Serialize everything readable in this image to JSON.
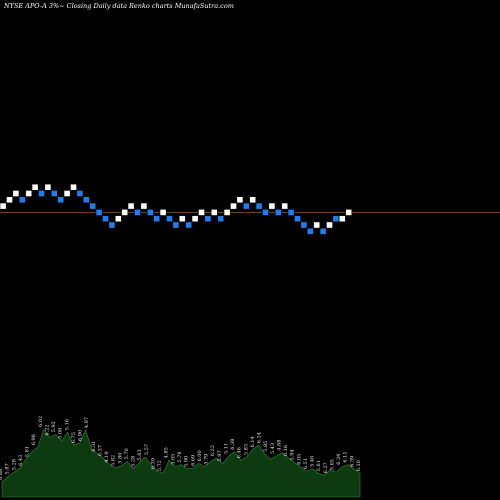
{
  "header": {
    "text": "NYSE APO-A 3%~  Closing Daily data  Renko  charts MunafaSutra.com"
  },
  "colors": {
    "background": "#000000",
    "up_brick": "#ffffff",
    "down_brick": "#1e7ef0",
    "reference_line": "#8b5a2b",
    "volume_fill": "#0d3a10",
    "volume_outline": "#2d8a30"
  },
  "chart_data": {
    "type": "renko",
    "title": "NYSE APO-A 3%~  Closing Daily data  Renko  charts MunafaSutra.com",
    "brick_size_note": "3%",
    "bricks": [
      {
        "dir": "up",
        "level": 0
      },
      {
        "dir": "up",
        "level": 1
      },
      {
        "dir": "up",
        "level": 2
      },
      {
        "dir": "down",
        "level": 1
      },
      {
        "dir": "up",
        "level": 2
      },
      {
        "dir": "up",
        "level": 3
      },
      {
        "dir": "down",
        "level": 2
      },
      {
        "dir": "up",
        "level": 3
      },
      {
        "dir": "down",
        "level": 2
      },
      {
        "dir": "down",
        "level": 1
      },
      {
        "dir": "up",
        "level": 2
      },
      {
        "dir": "up",
        "level": 3
      },
      {
        "dir": "down",
        "level": 2
      },
      {
        "dir": "down",
        "level": 1
      },
      {
        "dir": "down",
        "level": 0
      },
      {
        "dir": "down",
        "level": -1
      },
      {
        "dir": "down",
        "level": -2
      },
      {
        "dir": "down",
        "level": -3
      },
      {
        "dir": "up",
        "level": -2
      },
      {
        "dir": "up",
        "level": -1
      },
      {
        "dir": "up",
        "level": 0
      },
      {
        "dir": "down",
        "level": -1
      },
      {
        "dir": "up",
        "level": 0
      },
      {
        "dir": "down",
        "level": -1
      },
      {
        "dir": "down",
        "level": -2
      },
      {
        "dir": "up",
        "level": -1
      },
      {
        "dir": "down",
        "level": -2
      },
      {
        "dir": "down",
        "level": -3
      },
      {
        "dir": "up",
        "level": -2
      },
      {
        "dir": "down",
        "level": -3
      },
      {
        "dir": "up",
        "level": -2
      },
      {
        "dir": "up",
        "level": -1
      },
      {
        "dir": "down",
        "level": -2
      },
      {
        "dir": "up",
        "level": -1
      },
      {
        "dir": "down",
        "level": -2
      },
      {
        "dir": "up",
        "level": -1
      },
      {
        "dir": "up",
        "level": 0
      },
      {
        "dir": "up",
        "level": 1
      },
      {
        "dir": "down",
        "level": 0
      },
      {
        "dir": "up",
        "level": 1
      },
      {
        "dir": "down",
        "level": 0
      },
      {
        "dir": "down",
        "level": -1
      },
      {
        "dir": "up",
        "level": 0
      },
      {
        "dir": "down",
        "level": -1
      },
      {
        "dir": "up",
        "level": 0
      },
      {
        "dir": "down",
        "level": -1
      },
      {
        "dir": "down",
        "level": -2
      },
      {
        "dir": "down",
        "level": -3
      },
      {
        "dir": "down",
        "level": -4
      },
      {
        "dir": "up",
        "level": -3
      },
      {
        "dir": "down",
        "level": -4
      },
      {
        "dir": "up",
        "level": -3
      },
      {
        "dir": "down",
        "level": -2
      },
      {
        "dir": "up",
        "level": -2
      },
      {
        "dir": "up",
        "level": -1
      }
    ],
    "reference_level": -1,
    "volume": [
      14,
      19,
      23,
      27,
      35,
      42,
      46,
      63,
      55,
      58,
      52,
      60,
      48,
      50,
      62,
      45,
      40,
      36,
      30,
      27,
      29,
      33,
      26,
      32,
      37,
      30,
      24,
      22,
      34,
      28,
      30,
      26,
      27,
      31,
      28,
      33,
      36,
      31,
      38,
      42,
      34,
      37,
      44,
      48,
      40,
      35,
      38,
      41,
      36,
      32,
      28,
      24,
      26,
      22,
      20,
      25,
      23,
      28,
      30,
      26,
      22
    ],
    "volume_labels": [
      "6.88",
      "5.87",
      "5.28",
      "6.43",
      "5.61",
      "6.98",
      "6.02",
      "6.22",
      "5.93",
      "5.08",
      "5.16",
      "6.75",
      "6.90",
      "4.97",
      "6.31",
      "6.37",
      "4.19",
      "5.82",
      "5.80",
      "5.70",
      "5.28",
      "5.63",
      "5.57",
      "6.39",
      "5.72",
      "4.85",
      "5.05",
      "5.78",
      "5.90",
      "6.69",
      "6.00",
      "5.79",
      "6.22",
      "5.97",
      "5.11",
      "6.38",
      "6.46",
      "5.83",
      "6.14",
      "6.24",
      "5.85",
      "5.43",
      "4.88",
      "6.16",
      "5.94",
      "6.05",
      "6.51",
      "5.46",
      "5.61",
      "6.27",
      "5.65",
      "6.34",
      "6.11",
      "6.39",
      "6.10"
    ]
  }
}
